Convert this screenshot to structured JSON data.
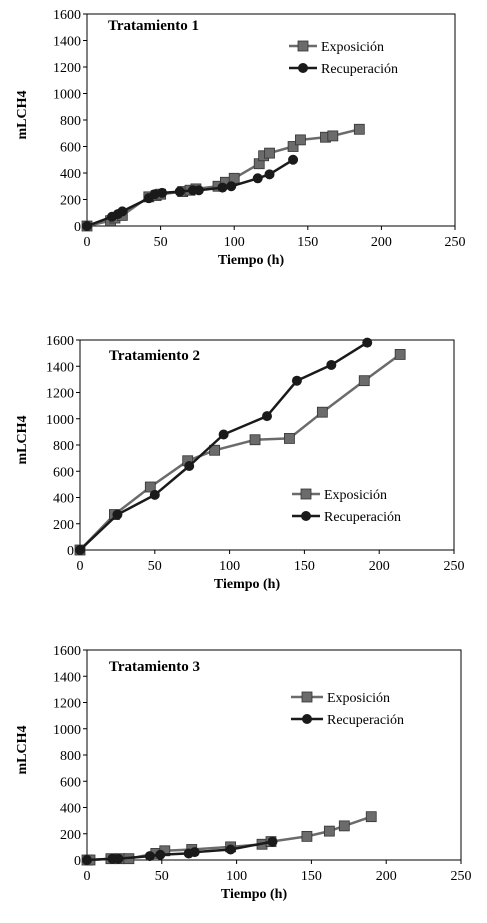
{
  "chart_data": [
    {
      "type": "line",
      "title": "Tratamiento 1",
      "xlabel": "Tiempo (h)",
      "ylabel": "mLCH4",
      "xlim": [
        0,
        250
      ],
      "ylim": [
        0,
        1600
      ],
      "xticks": [
        0,
        50,
        100,
        150,
        200,
        250
      ],
      "yticks": [
        0,
        200,
        400,
        600,
        800,
        1000,
        1200,
        1400,
        1600
      ],
      "legend": "top-right",
      "series": [
        {
          "name": "Exposición",
          "marker": "square",
          "color": "#6b6b6b",
          "x": [
            0,
            16,
            19,
            24,
            42,
            47,
            50,
            65,
            70,
            74,
            89,
            94,
            100,
            117,
            120,
            124,
            140,
            145,
            162,
            167,
            185
          ],
          "y": [
            0,
            40,
            60,
            80,
            220,
            230,
            240,
            260,
            270,
            280,
            300,
            330,
            360,
            470,
            530,
            550,
            600,
            650,
            670,
            680,
            730
          ]
        },
        {
          "name": "Recuperación",
          "marker": "circle",
          "color": "#1a1a1a",
          "x": [
            0,
            17,
            21,
            24,
            42,
            46,
            51,
            63,
            72,
            76,
            92,
            98,
            116,
            124,
            140
          ],
          "y": [
            0,
            70,
            90,
            110,
            210,
            240,
            250,
            260,
            270,
            270,
            290,
            300,
            360,
            390,
            500
          ]
        }
      ]
    },
    {
      "type": "line",
      "title": "Tratamiento 2",
      "xlabel": "Tiempo (h)",
      "ylabel": "mLCH4",
      "xlim": [
        0,
        250
      ],
      "ylim": [
        0,
        1600
      ],
      "xticks": [
        0,
        50,
        100,
        150,
        200,
        250
      ],
      "yticks": [
        0,
        200,
        400,
        600,
        800,
        1000,
        1200,
        1400,
        1600
      ],
      "legend": "right",
      "series": [
        {
          "name": "Exposición",
          "marker": "square",
          "color": "#6b6b6b",
          "x": [
            0,
            23,
            47,
            72,
            90,
            117,
            140,
            162,
            190,
            214
          ],
          "y": [
            0,
            270,
            480,
            680,
            760,
            840,
            850,
            1050,
            1290,
            1490
          ]
        },
        {
          "name": "Recuperación",
          "marker": "circle",
          "color": "#1a1a1a",
          "x": [
            0,
            25,
            50,
            73,
            96,
            125,
            145,
            168,
            192
          ],
          "y": [
            0,
            270,
            420,
            640,
            880,
            1020,
            1290,
            1410,
            1580
          ]
        }
      ]
    },
    {
      "type": "line",
      "title": "Tratamiento 3",
      "xlabel": "Tiempo (h)",
      "ylabel": "mLCH4",
      "xlim": [
        0,
        250
      ],
      "ylim": [
        0,
        1600
      ],
      "xticks": [
        0,
        50,
        100,
        150,
        200,
        250
      ],
      "yticks": [
        0,
        200,
        400,
        600,
        800,
        1000,
        1200,
        1400,
        1600
      ],
      "legend": "top-right",
      "series": [
        {
          "name": "Exposición",
          "marker": "square",
          "color": "#6b6b6b",
          "x": [
            0,
            2,
            16,
            22,
            28,
            46,
            52,
            70,
            96,
            117,
            123,
            147,
            162,
            172,
            190
          ],
          "y": [
            0,
            0,
            10,
            10,
            10,
            50,
            70,
            80,
            100,
            120,
            140,
            180,
            220,
            260,
            330
          ]
        },
        {
          "name": "Recuperación",
          "marker": "circle",
          "color": "#1a1a1a",
          "x": [
            0,
            17,
            21,
            42,
            49,
            68,
            72,
            96,
            124
          ],
          "y": [
            0,
            10,
            10,
            30,
            40,
            50,
            60,
            80,
            140
          ]
        }
      ]
    }
  ]
}
